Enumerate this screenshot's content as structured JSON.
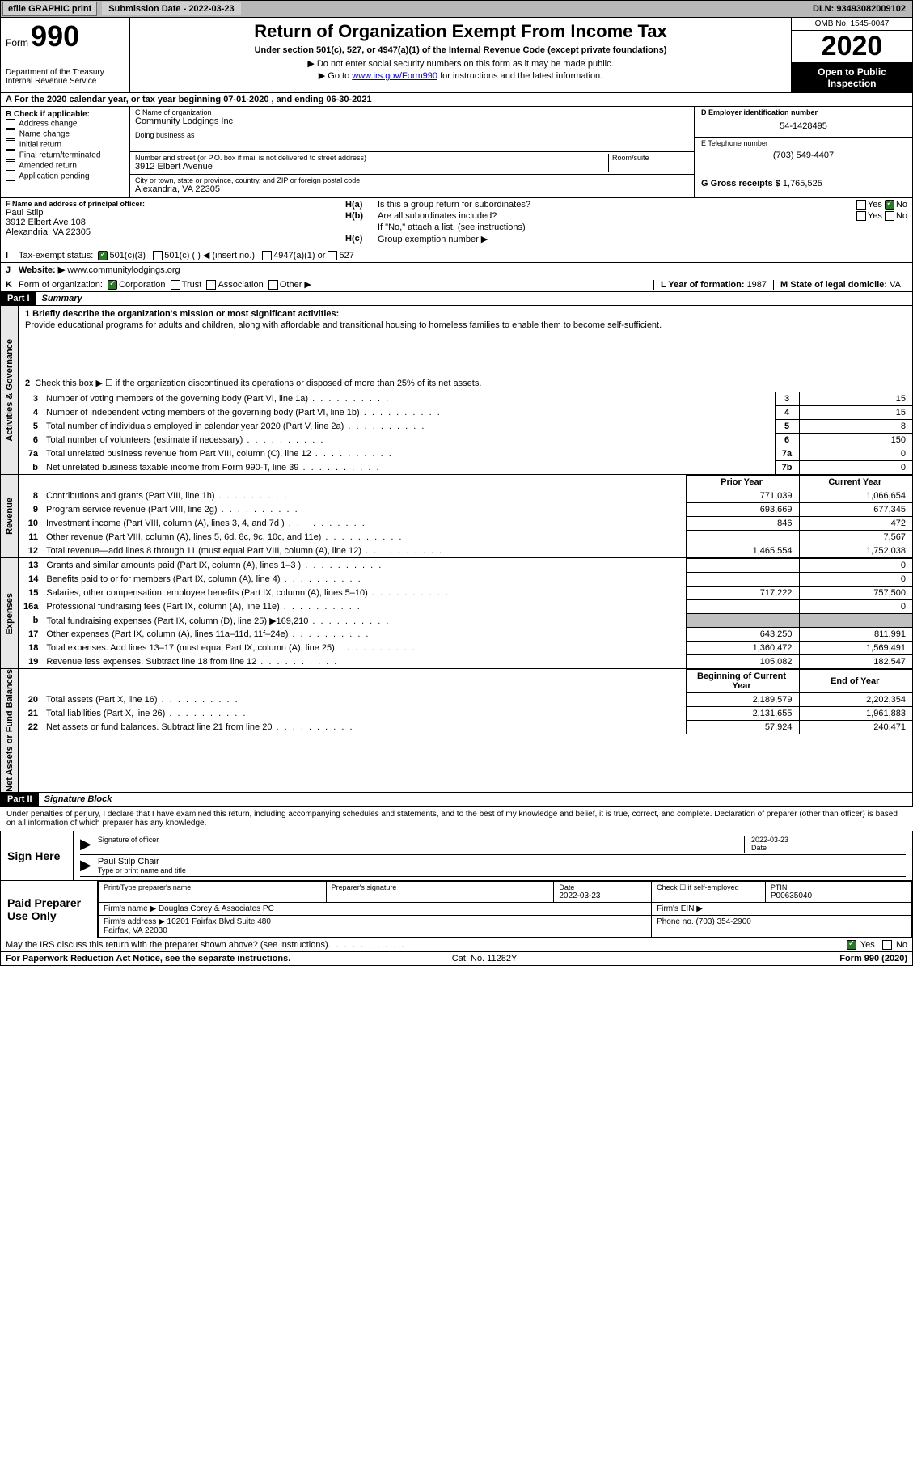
{
  "topbar": {
    "efile": "efile GRAPHIC print",
    "submission": "Submission Date - 2022-03-23",
    "dln": "DLN: 93493082009102"
  },
  "header": {
    "form_word": "Form",
    "form_num": "990",
    "dept": "Department of the Treasury\nInternal Revenue Service",
    "title": "Return of Organization Exempt From Income Tax",
    "subtitle": "Under section 501(c), 527, or 4947(a)(1) of the Internal Revenue Code (except private foundations)",
    "note1": "▶ Do not enter social security numbers on this form as it may be made public.",
    "note2_pre": "▶ Go to ",
    "note2_link": "www.irs.gov/Form990",
    "note2_post": " for instructions and the latest information.",
    "omb": "OMB No. 1545-0047",
    "year": "2020",
    "inspection": "Open to Public Inspection"
  },
  "row_a": "A For the 2020 calendar year, or tax year beginning 07-01-2020    , and ending 06-30-2021",
  "col_b": {
    "title": "B Check if applicable:",
    "opts": [
      "Address change",
      "Name change",
      "Initial return",
      "Final return/terminated",
      "Amended return",
      "Application pending"
    ]
  },
  "col_c": {
    "name_lbl": "C Name of organization",
    "name": "Community Lodgings Inc",
    "dba_lbl": "Doing business as",
    "dba": "",
    "addr_lbl": "Number and street (or P.O. box if mail is not delivered to street address)",
    "addr": "3912 Elbert Avenue",
    "room_lbl": "Room/suite",
    "city_lbl": "City or town, state or province, country, and ZIP or foreign postal code",
    "city": "Alexandria, VA  22305"
  },
  "col_d": {
    "ein_lbl": "D Employer identification number",
    "ein": "54-1428495",
    "tel_lbl": "E Telephone number",
    "tel": "(703) 549-4407",
    "gross_lbl": "G Gross receipts $",
    "gross": "1,765,525"
  },
  "col_f": {
    "lbl": "F  Name and address of principal officer:",
    "name": "Paul Stilp",
    "addr1": "3912 Elbert Ave 108",
    "addr2": "Alexandria, VA  22305"
  },
  "col_h": {
    "ha_lbl": "H(a)",
    "ha_text": "Is this a group return for subordinates?",
    "ha_yes": "Yes",
    "ha_no": "No",
    "hb_lbl": "H(b)",
    "hb_text": "Are all subordinates included?",
    "hb_note": "If \"No,\" attach a list. (see instructions)",
    "hc_lbl": "H(c)",
    "hc_text": "Group exemption number ▶"
  },
  "row_i": {
    "lbl": "I",
    "text": "Tax-exempt status:",
    "o1": "501(c)(3)",
    "o2": "501(c) (  ) ◀ (insert no.)",
    "o3": "4947(a)(1) or",
    "o4": "527"
  },
  "row_j": {
    "lbl": "J",
    "text": "Website: ▶",
    "val": "www.communitylodgings.org"
  },
  "row_k": {
    "lbl": "K",
    "text": "Form of organization:",
    "o1": "Corporation",
    "o2": "Trust",
    "o3": "Association",
    "o4": "Other ▶",
    "year_lbl": "L Year of formation:",
    "year": "1987",
    "state_lbl": "M State of legal domicile:",
    "state": "VA"
  },
  "part1": {
    "header": "Part I",
    "title": "Summary",
    "mission_lbl": "1  Briefly describe the organization's mission or most significant activities:",
    "mission": "Provide educational programs for adults and children, along with affordable and transitional housing to homeless families to enable them to become self-sufficient.",
    "line2": "Check this box ▶ ☐  if the organization discontinued its operations or disposed of more than 25% of its net assets.",
    "vtab_gov": "Activities & Governance",
    "vtab_rev": "Revenue",
    "vtab_exp": "Expenses",
    "vtab_net": "Net Assets or Fund Balances",
    "hdr_prior": "Prior Year",
    "hdr_current": "Current Year",
    "hdr_begin": "Beginning of Current Year",
    "hdr_end": "End of Year",
    "rows_gov": [
      {
        "n": "3",
        "d": "Number of voting members of the governing body (Part VI, line 1a)",
        "box": "3",
        "v": "15"
      },
      {
        "n": "4",
        "d": "Number of independent voting members of the governing body (Part VI, line 1b)",
        "box": "4",
        "v": "15"
      },
      {
        "n": "5",
        "d": "Total number of individuals employed in calendar year 2020 (Part V, line 2a)",
        "box": "5",
        "v": "8"
      },
      {
        "n": "6",
        "d": "Total number of volunteers (estimate if necessary)",
        "box": "6",
        "v": "150"
      },
      {
        "n": "7a",
        "d": "Total unrelated business revenue from Part VIII, column (C), line 12",
        "box": "7a",
        "v": "0"
      },
      {
        "n": "b",
        "d": "Net unrelated business taxable income from Form 990-T, line 39",
        "box": "7b",
        "v": "0"
      }
    ],
    "rows_rev": [
      {
        "n": "8",
        "d": "Contributions and grants (Part VIII, line 1h)",
        "p": "771,039",
        "c": "1,066,654"
      },
      {
        "n": "9",
        "d": "Program service revenue (Part VIII, line 2g)",
        "p": "693,669",
        "c": "677,345"
      },
      {
        "n": "10",
        "d": "Investment income (Part VIII, column (A), lines 3, 4, and 7d )",
        "p": "846",
        "c": "472"
      },
      {
        "n": "11",
        "d": "Other revenue (Part VIII, column (A), lines 5, 6d, 8c, 9c, 10c, and 11e)",
        "p": "",
        "c": "7,567"
      },
      {
        "n": "12",
        "d": "Total revenue—add lines 8 through 11 (must equal Part VIII, column (A), line 12)",
        "p": "1,465,554",
        "c": "1,752,038"
      }
    ],
    "rows_exp": [
      {
        "n": "13",
        "d": "Grants and similar amounts paid (Part IX, column (A), lines 1–3 )",
        "p": "",
        "c": "0"
      },
      {
        "n": "14",
        "d": "Benefits paid to or for members (Part IX, column (A), line 4)",
        "p": "",
        "c": "0"
      },
      {
        "n": "15",
        "d": "Salaries, other compensation, employee benefits (Part IX, column (A), lines 5–10)",
        "p": "717,222",
        "c": "757,500"
      },
      {
        "n": "16a",
        "d": "Professional fundraising fees (Part IX, column (A), line 11e)",
        "p": "",
        "c": "0"
      },
      {
        "n": "b",
        "d": "Total fundraising expenses (Part IX, column (D), line 25) ▶169,210",
        "p": "shaded",
        "c": "shaded"
      },
      {
        "n": "17",
        "d": "Other expenses (Part IX, column (A), lines 11a–11d, 11f–24e)",
        "p": "643,250",
        "c": "811,991"
      },
      {
        "n": "18",
        "d": "Total expenses. Add lines 13–17 (must equal Part IX, column (A), line 25)",
        "p": "1,360,472",
        "c": "1,569,491"
      },
      {
        "n": "19",
        "d": "Revenue less expenses. Subtract line 18 from line 12",
        "p": "105,082",
        "c": "182,547"
      }
    ],
    "rows_net": [
      {
        "n": "20",
        "d": "Total assets (Part X, line 16)",
        "p": "2,189,579",
        "c": "2,202,354"
      },
      {
        "n": "21",
        "d": "Total liabilities (Part X, line 26)",
        "p": "2,131,655",
        "c": "1,961,883"
      },
      {
        "n": "22",
        "d": "Net assets or fund balances. Subtract line 21 from line 20",
        "p": "57,924",
        "c": "240,471"
      }
    ]
  },
  "part2": {
    "header": "Part II",
    "title": "Signature Block",
    "decl": "Under penalties of perjury, I declare that I have examined this return, including accompanying schedules and statements, and to the best of my knowledge and belief, it is true, correct, and complete. Declaration of preparer (other than officer) is based on all information of which preparer has any knowledge.",
    "sign_here": "Sign Here",
    "sig_officer": "Signature of officer",
    "sig_date": "2022-03-23",
    "date_lbl": "Date",
    "officer_name": "Paul Stilp Chair",
    "type_lbl": "Type or print name and title",
    "paid": "Paid Preparer Use Only",
    "prep_name_lbl": "Print/Type preparer's name",
    "prep_sig_lbl": "Preparer's signature",
    "prep_date_lbl": "Date",
    "prep_date": "2022-03-23",
    "check_lbl": "Check ☐ if self-employed",
    "ptin_lbl": "PTIN",
    "ptin": "P00635040",
    "firm_name_lbl": "Firm's name    ▶",
    "firm_name": "Douglas Corey & Associates PC",
    "firm_ein_lbl": "Firm's EIN ▶",
    "firm_addr_lbl": "Firm's address ▶",
    "firm_addr": "10201 Fairfax Blvd Suite 480\nFairfax, VA  22030",
    "firm_phone_lbl": "Phone no.",
    "firm_phone": "(703) 354-2900",
    "discuss": "May the IRS discuss this return with the preparer shown above? (see instructions)",
    "yes": "Yes",
    "no": "No"
  },
  "footer": {
    "pra": "For Paperwork Reduction Act Notice, see the separate instructions.",
    "cat": "Cat. No. 11282Y",
    "form": "Form 990 (2020)"
  }
}
